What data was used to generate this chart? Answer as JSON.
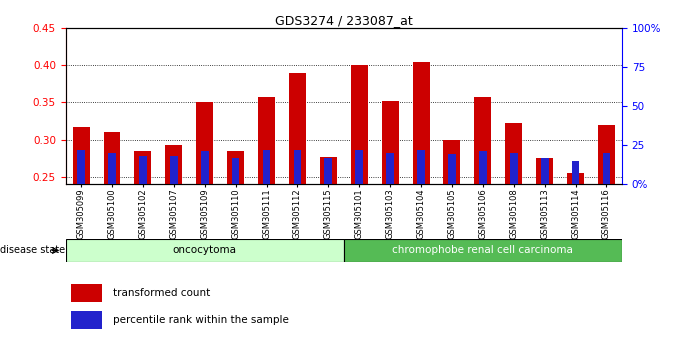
{
  "title": "GDS3274 / 233087_at",
  "samples": [
    "GSM305099",
    "GSM305100",
    "GSM305102",
    "GSM305107",
    "GSM305109",
    "GSM305110",
    "GSM305111",
    "GSM305112",
    "GSM305115",
    "GSM305101",
    "GSM305103",
    "GSM305104",
    "GSM305105",
    "GSM305106",
    "GSM305108",
    "GSM305113",
    "GSM305114",
    "GSM305116"
  ],
  "transformed_count": [
    0.317,
    0.31,
    0.285,
    0.293,
    0.35,
    0.284,
    0.358,
    0.39,
    0.277,
    0.4,
    0.352,
    0.404,
    0.3,
    0.357,
    0.323,
    0.275,
    0.255,
    0.32
  ],
  "percentile_rank": [
    22,
    20,
    18,
    18,
    21,
    17,
    22,
    22,
    17,
    22,
    20,
    22,
    19,
    21,
    20,
    17,
    15,
    20
  ],
  "y_min": 0.24,
  "y_max": 0.45,
  "y_ticks_left": [
    0.25,
    0.3,
    0.35,
    0.4,
    0.45
  ],
  "right_y_ticks": [
    0,
    25,
    50,
    75,
    100
  ],
  "bar_color_red": "#cc0000",
  "bar_color_blue": "#2222cc",
  "bg_color": "#ffffff",
  "oncocytoma_color": "#ccffcc",
  "carcinoma_color": "#55bb55",
  "n_oncocytoma": 9,
  "n_carcinoma": 9,
  "group_label_oncocytoma": "oncocytoma",
  "group_label_carcinoma": "chromophobe renal cell carcinoma",
  "disease_state_label": "disease state",
  "legend_red": "transformed count",
  "legend_blue": "percentile rank within the sample",
  "bar_width": 0.55,
  "blue_bar_width": 0.25
}
